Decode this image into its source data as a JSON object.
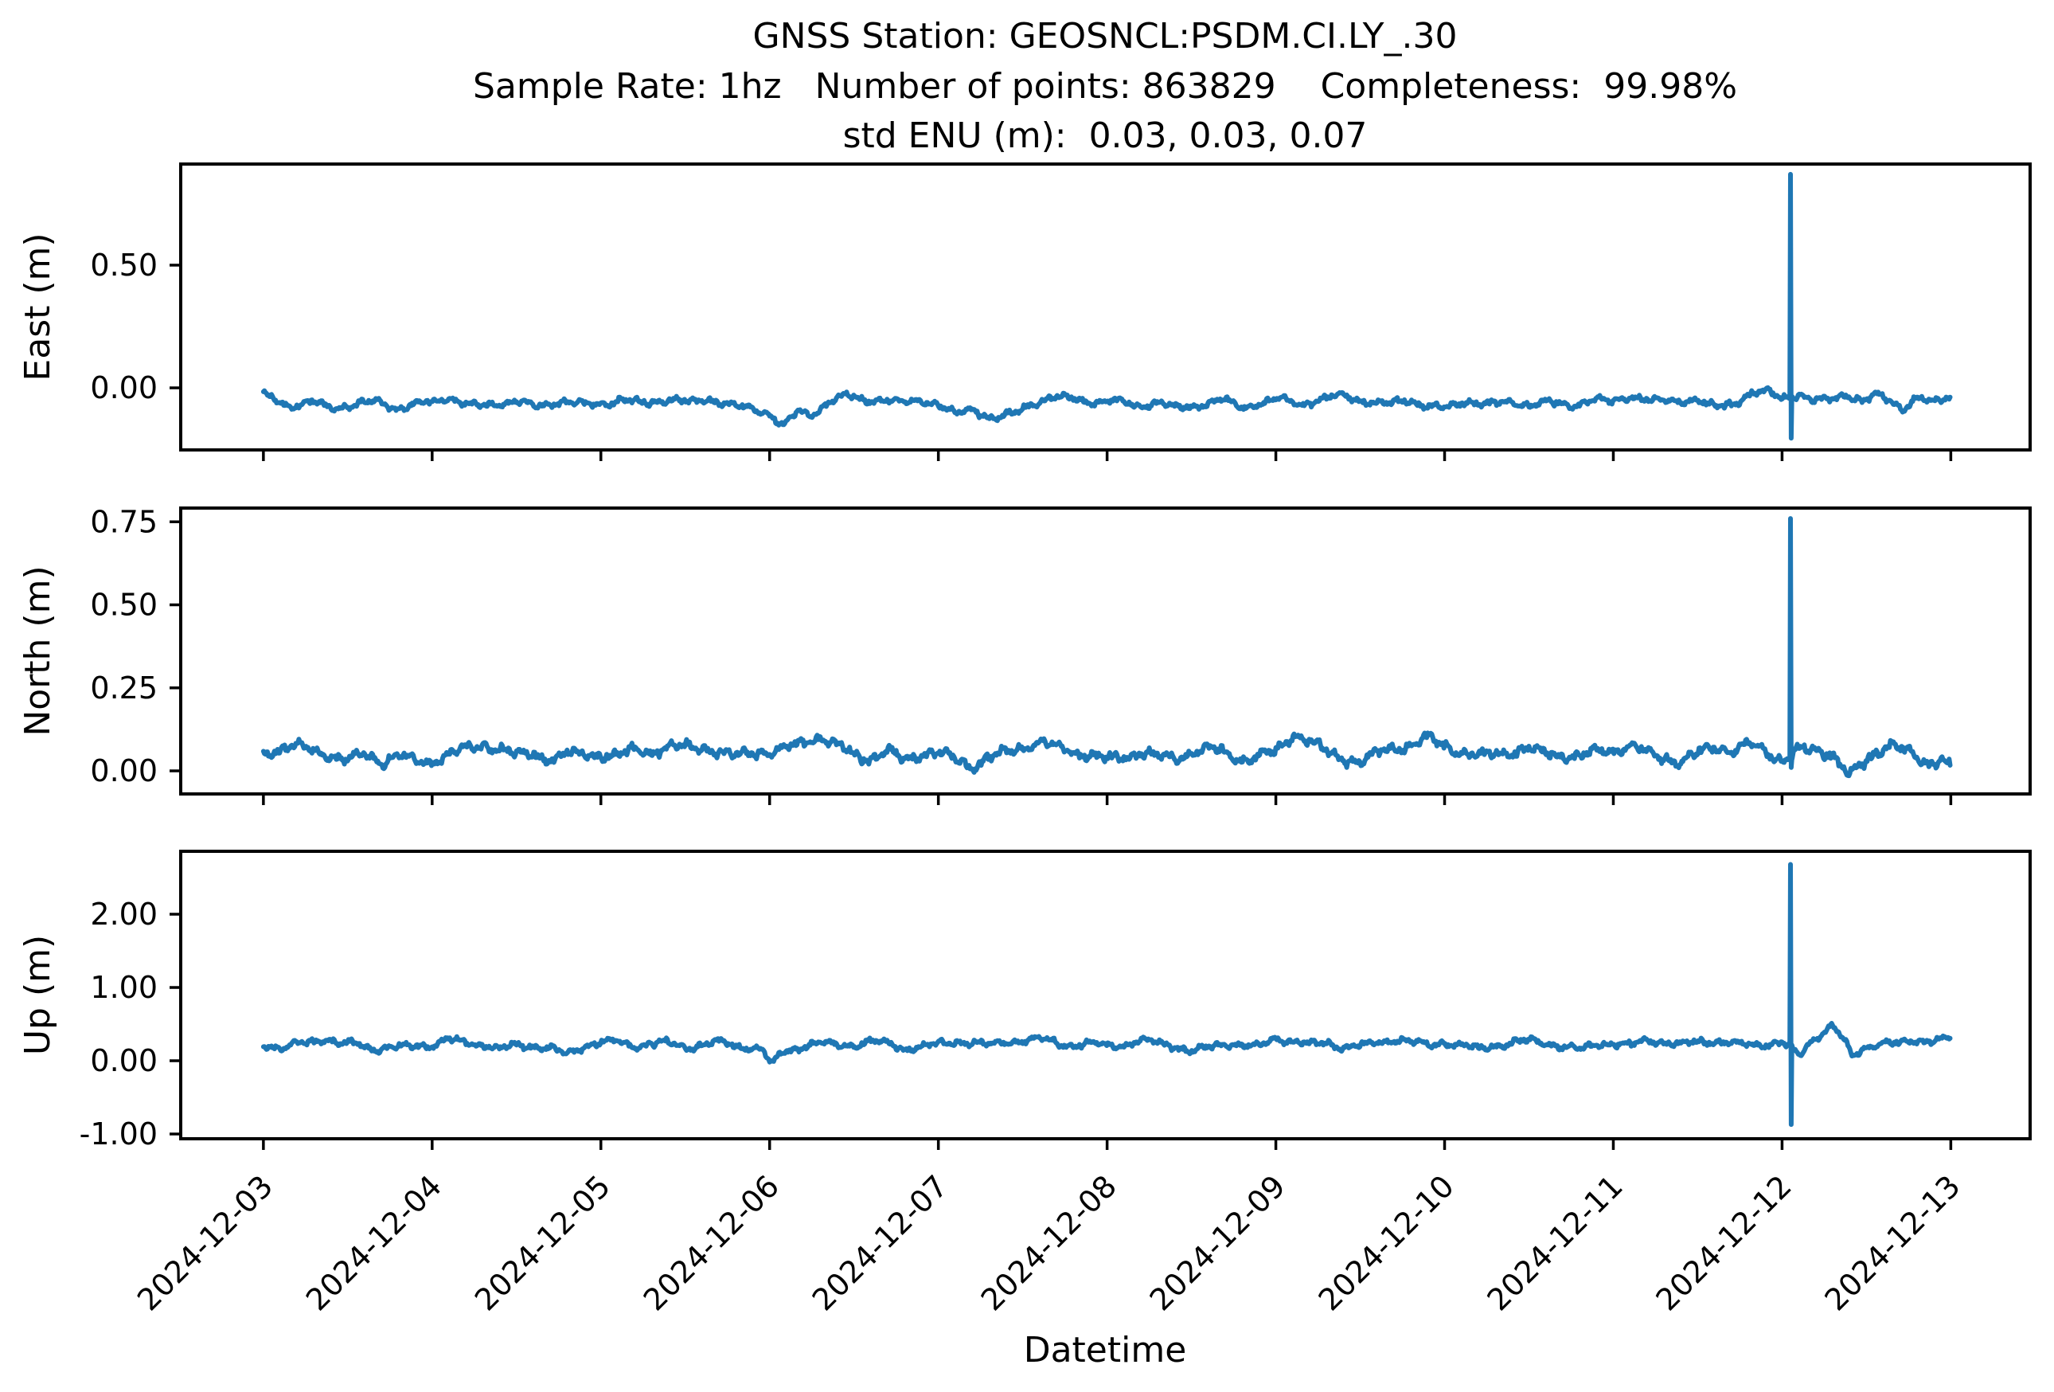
{
  "figure": {
    "background": "#ffffff",
    "axis_color": "#000000",
    "line_color": "#1f77b4"
  },
  "title": {
    "line1": "GNSS Station: GEOSNCL:PSDM.CI.LY_.30",
    "line2": "Sample Rate: 1hz   Number of points: 863829    Completeness:  99.98%",
    "line3": "std ENU (m):  0.03, 0.03, 0.07"
  },
  "xaxis": {
    "label": "Datetime",
    "xlim_days": [
      -0.49,
      10.47
    ],
    "tick_days": [
      0,
      1,
      2,
      3,
      4,
      5,
      6,
      7,
      8,
      9,
      10
    ],
    "tick_labels": [
      "2024-12-03",
      "2024-12-04",
      "2024-12-05",
      "2024-12-06",
      "2024-12-07",
      "2024-12-08",
      "2024-12-09",
      "2024-12-10",
      "2024-12-11",
      "2024-12-12",
      "2024-12-13"
    ]
  },
  "chart_data": [
    {
      "type": "line",
      "panel": "east",
      "ylabel": "East (m)",
      "ylim": [
        -0.253,
        0.912
      ],
      "ytick_values": [
        0.0,
        0.5
      ],
      "ytick_labels": [
        "0.00",
        "0.50"
      ],
      "grid": false,
      "legend": "none",
      "noise_amplitude": 0.014,
      "spike": {
        "t_days": 9.05,
        "peak": 0.87,
        "trough": -0.205
      },
      "anchors": [
        [
          0,
          -0.03
        ],
        [
          0.08,
          -0.05
        ],
        [
          0.17,
          -0.085
        ],
        [
          0.3,
          -0.06
        ],
        [
          0.42,
          -0.075
        ],
        [
          0.55,
          -0.065
        ],
        [
          0.68,
          -0.05
        ],
        [
          0.8,
          -0.09
        ],
        [
          0.9,
          -0.075
        ],
        [
          1.0,
          -0.06
        ],
        [
          1.1,
          -0.04
        ],
        [
          1.22,
          -0.07
        ],
        [
          1.35,
          -0.06
        ],
        [
          1.5,
          -0.055
        ],
        [
          1.62,
          -0.08
        ],
        [
          1.75,
          -0.06
        ],
        [
          1.9,
          -0.07
        ],
        [
          2.0,
          -0.06
        ],
        [
          2.12,
          -0.045
        ],
        [
          2.25,
          -0.06
        ],
        [
          2.4,
          -0.05
        ],
        [
          2.52,
          -0.065
        ],
        [
          2.65,
          -0.05
        ],
        [
          2.78,
          -0.07
        ],
        [
          2.9,
          -0.08
        ],
        [
          3.0,
          -0.1
        ],
        [
          3.08,
          -0.155
        ],
        [
          3.17,
          -0.1
        ],
        [
          3.25,
          -0.12
        ],
        [
          3.35,
          -0.06
        ],
        [
          3.45,
          -0.035
        ],
        [
          3.55,
          -0.05
        ],
        [
          3.68,
          -0.04
        ],
        [
          3.8,
          -0.06
        ],
        [
          3.9,
          -0.05
        ],
        [
          4.0,
          -0.07
        ],
        [
          4.1,
          -0.115
        ],
        [
          4.2,
          -0.09
        ],
        [
          4.32,
          -0.125
        ],
        [
          4.45,
          -0.1
        ],
        [
          4.55,
          -0.06
        ],
        [
          4.68,
          -0.035
        ],
        [
          4.8,
          -0.05
        ],
        [
          4.92,
          -0.065
        ],
        [
          5.05,
          -0.055
        ],
        [
          5.18,
          -0.07
        ],
        [
          5.3,
          -0.055
        ],
        [
          5.42,
          -0.08
        ],
        [
          5.55,
          -0.07
        ],
        [
          5.68,
          -0.055
        ],
        [
          5.8,
          -0.085
        ],
        [
          5.92,
          -0.06
        ],
        [
          6.02,
          -0.04
        ],
        [
          6.15,
          -0.06
        ],
        [
          6.28,
          -0.045
        ],
        [
          6.4,
          -0.035
        ],
        [
          6.52,
          -0.06
        ],
        [
          6.65,
          -0.07
        ],
        [
          6.78,
          -0.045
        ],
        [
          6.9,
          -0.07
        ],
        [
          7.0,
          -0.08
        ],
        [
          7.12,
          -0.055
        ],
        [
          7.25,
          -0.075
        ],
        [
          7.38,
          -0.06
        ],
        [
          7.5,
          -0.07
        ],
        [
          7.62,
          -0.055
        ],
        [
          7.75,
          -0.065
        ],
        [
          7.88,
          -0.05
        ],
        [
          8.0,
          -0.06
        ],
        [
          8.1,
          -0.04
        ],
        [
          8.22,
          -0.055
        ],
        [
          8.35,
          -0.05
        ],
        [
          8.48,
          -0.042
        ],
        [
          8.6,
          -0.075
        ],
        [
          8.72,
          -0.06
        ],
        [
          8.82,
          -0.03
        ],
        [
          8.92,
          -0.02
        ],
        [
          9.0,
          -0.045
        ],
        [
          9.1,
          -0.025
        ],
        [
          9.18,
          -0.05
        ],
        [
          9.28,
          -0.04
        ],
        [
          9.38,
          -0.02
        ],
        [
          9.48,
          -0.06
        ],
        [
          9.56,
          -0.03
        ],
        [
          9.64,
          -0.055
        ],
        [
          9.72,
          -0.09
        ],
        [
          9.8,
          -0.045
        ],
        [
          9.88,
          -0.06
        ],
        [
          9.95,
          -0.04
        ],
        [
          10,
          -0.03
        ]
      ]
    },
    {
      "type": "line",
      "panel": "north",
      "ylabel": "North (m)",
      "ylim": [
        -0.0695,
        0.7914
      ],
      "ytick_values": [
        0.0,
        0.25,
        0.5,
        0.75
      ],
      "ytick_labels": [
        "0.00",
        "0.25",
        "0.50",
        "0.75"
      ],
      "grid": false,
      "legend": "none",
      "noise_amplitude": 0.016,
      "spike": {
        "t_days": 9.05,
        "peak": 0.76,
        "trough": 0.01
      },
      "anchors": [
        [
          0,
          0.05
        ],
        [
          0.1,
          0.065
        ],
        [
          0.2,
          0.08
        ],
        [
          0.3,
          0.07
        ],
        [
          0.4,
          0.05
        ],
        [
          0.5,
          0.03
        ],
        [
          0.6,
          0.05
        ],
        [
          0.7,
          0.02
        ],
        [
          0.8,
          0.04
        ],
        [
          0.9,
          0.03
        ],
        [
          1.0,
          0.035
        ],
        [
          1.1,
          0.055
        ],
        [
          1.2,
          0.07
        ],
        [
          1.3,
          0.08
        ],
        [
          1.4,
          0.06
        ],
        [
          1.5,
          0.04
        ],
        [
          1.6,
          0.05
        ],
        [
          1.7,
          0.035
        ],
        [
          1.8,
          0.055
        ],
        [
          1.9,
          0.06
        ],
        [
          2.0,
          0.05
        ],
        [
          2.1,
          0.04
        ],
        [
          2.2,
          0.06
        ],
        [
          2.3,
          0.05
        ],
        [
          2.4,
          0.065
        ],
        [
          2.5,
          0.075
        ],
        [
          2.6,
          0.08
        ],
        [
          2.7,
          0.06
        ],
        [
          2.8,
          0.05
        ],
        [
          2.9,
          0.06
        ],
        [
          3.0,
          0.045
        ],
        [
          3.1,
          0.06
        ],
        [
          3.2,
          0.09
        ],
        [
          3.3,
          0.1
        ],
        [
          3.4,
          0.08
        ],
        [
          3.5,
          0.06
        ],
        [
          3.6,
          0.04
        ],
        [
          3.7,
          0.055
        ],
        [
          3.8,
          0.03
        ],
        [
          3.9,
          0.045
        ],
        [
          4.0,
          0.05
        ],
        [
          4.1,
          0.04
        ],
        [
          4.2,
          0.02
        ],
        [
          4.3,
          0.045
        ],
        [
          4.4,
          0.06
        ],
        [
          4.5,
          0.07
        ],
        [
          4.6,
          0.08
        ],
        [
          4.7,
          0.065
        ],
        [
          4.8,
          0.055
        ],
        [
          4.9,
          0.05
        ],
        [
          5.0,
          0.04
        ],
        [
          5.1,
          0.05
        ],
        [
          5.2,
          0.06
        ],
        [
          5.3,
          0.04
        ],
        [
          5.4,
          0.03
        ],
        [
          5.5,
          0.05
        ],
        [
          5.6,
          0.065
        ],
        [
          5.7,
          0.055
        ],
        [
          5.8,
          0.04
        ],
        [
          5.9,
          0.05
        ],
        [
          6.0,
          0.06
        ],
        [
          6.1,
          0.11
        ],
        [
          6.2,
          0.085
        ],
        [
          6.3,
          0.05
        ],
        [
          6.4,
          0.035
        ],
        [
          6.5,
          0.03
        ],
        [
          6.6,
          0.06
        ],
        [
          6.7,
          0.075
        ],
        [
          6.8,
          0.08
        ],
        [
          6.9,
          0.095
        ],
        [
          7.0,
          0.07
        ],
        [
          7.1,
          0.05
        ],
        [
          7.2,
          0.04
        ],
        [
          7.3,
          0.055
        ],
        [
          7.4,
          0.065
        ],
        [
          7.5,
          0.07
        ],
        [
          7.6,
          0.055
        ],
        [
          7.7,
          0.045
        ],
        [
          7.8,
          0.035
        ],
        [
          7.9,
          0.05
        ],
        [
          8.0,
          0.06
        ],
        [
          8.1,
          0.08
        ],
        [
          8.2,
          0.06
        ],
        [
          8.3,
          0.045
        ],
        [
          8.4,
          0.03
        ],
        [
          8.5,
          0.05
        ],
        [
          8.6,
          0.065
        ],
        [
          8.7,
          0.055
        ],
        [
          8.8,
          0.08
        ],
        [
          8.9,
          0.06
        ],
        [
          9.0,
          0.04
        ],
        [
          9.1,
          0.07
        ],
        [
          9.2,
          0.06
        ],
        [
          9.3,
          0.05
        ],
        [
          9.4,
          -0.02
        ],
        [
          9.5,
          0.02
        ],
        [
          9.6,
          0.07
        ],
        [
          9.65,
          0.09
        ],
        [
          9.75,
          0.06
        ],
        [
          9.85,
          0.02
        ],
        [
          9.95,
          0.045
        ],
        [
          10,
          0.02
        ]
      ]
    },
    {
      "type": "line",
      "panel": "up",
      "ylabel": "Up (m)",
      "ylim": [
        -1.065,
        2.859
      ],
      "ytick_values": [
        -1.0,
        0.0,
        1.0,
        2.0
      ],
      "ytick_labels": [
        "-1.00",
        "0.00",
        "1.00",
        "2.00"
      ],
      "grid": false,
      "legend": "none",
      "noise_amplitude": 0.045,
      "spike": {
        "t_days": 9.05,
        "peak": 2.68,
        "trough": -0.87
      },
      "anchors": [
        [
          0,
          0.25
        ],
        [
          0.1,
          0.15
        ],
        [
          0.22,
          0.26
        ],
        [
          0.35,
          0.28
        ],
        [
          0.45,
          0.2
        ],
        [
          0.55,
          0.24
        ],
        [
          0.68,
          0.15
        ],
        [
          0.8,
          0.2
        ],
        [
          0.9,
          0.24
        ],
        [
          1.0,
          0.2
        ],
        [
          1.1,
          0.28
        ],
        [
          1.2,
          0.24
        ],
        [
          1.3,
          0.2
        ],
        [
          1.4,
          0.14
        ],
        [
          1.5,
          0.24
        ],
        [
          1.6,
          0.22
        ],
        [
          1.7,
          0.18
        ],
        [
          1.8,
          0.1
        ],
        [
          1.9,
          0.2
        ],
        [
          2.0,
          0.23
        ],
        [
          2.1,
          0.25
        ],
        [
          2.2,
          0.2
        ],
        [
          2.3,
          0.24
        ],
        [
          2.4,
          0.26
        ],
        [
          2.5,
          0.2
        ],
        [
          2.6,
          0.22
        ],
        [
          2.7,
          0.25
        ],
        [
          2.8,
          0.18
        ],
        [
          2.9,
          0.16
        ],
        [
          2.96,
          0.15
        ],
        [
          3.01,
          -0.07
        ],
        [
          3.07,
          0.12
        ],
        [
          3.2,
          0.22
        ],
        [
          3.3,
          0.26
        ],
        [
          3.4,
          0.22
        ],
        [
          3.5,
          0.2
        ],
        [
          3.6,
          0.25
        ],
        [
          3.7,
          0.22
        ],
        [
          3.8,
          0.16
        ],
        [
          3.9,
          0.2
        ],
        [
          4.0,
          0.24
        ],
        [
          4.1,
          0.28
        ],
        [
          4.2,
          0.25
        ],
        [
          4.3,
          0.2
        ],
        [
          4.4,
          0.24
        ],
        [
          4.5,
          0.26
        ],
        [
          4.6,
          0.3
        ],
        [
          4.7,
          0.26
        ],
        [
          4.8,
          0.22
        ],
        [
          4.9,
          0.25
        ],
        [
          5.0,
          0.22
        ],
        [
          5.1,
          0.2
        ],
        [
          5.2,
          0.26
        ],
        [
          5.3,
          0.23
        ],
        [
          5.4,
          0.2
        ],
        [
          5.5,
          0.13
        ],
        [
          5.6,
          0.2
        ],
        [
          5.7,
          0.25
        ],
        [
          5.8,
          0.21
        ],
        [
          5.9,
          0.18
        ],
        [
          6.0,
          0.3
        ],
        [
          6.1,
          0.25
        ],
        [
          6.2,
          0.22
        ],
        [
          6.3,
          0.26
        ],
        [
          6.4,
          0.2
        ],
        [
          6.5,
          0.22
        ],
        [
          6.6,
          0.25
        ],
        [
          6.7,
          0.28
        ],
        [
          6.8,
          0.24
        ],
        [
          6.9,
          0.2
        ],
        [
          7.0,
          0.25
        ],
        [
          7.1,
          0.22
        ],
        [
          7.2,
          0.18
        ],
        [
          7.3,
          0.22
        ],
        [
          7.4,
          0.25
        ],
        [
          7.5,
          0.26
        ],
        [
          7.6,
          0.22
        ],
        [
          7.7,
          0.18
        ],
        [
          7.8,
          0.15
        ],
        [
          7.9,
          0.24
        ],
        [
          8.0,
          0.26
        ],
        [
          8.1,
          0.22
        ],
        [
          8.2,
          0.28
        ],
        [
          8.3,
          0.24
        ],
        [
          8.4,
          0.2
        ],
        [
          8.5,
          0.24
        ],
        [
          8.6,
          0.27
        ],
        [
          8.7,
          0.26
        ],
        [
          8.8,
          0.23
        ],
        [
          8.9,
          0.24
        ],
        [
          9.0,
          0.26
        ],
        [
          9.1,
          0.05
        ],
        [
          9.2,
          0.3
        ],
        [
          9.3,
          0.48
        ],
        [
          9.36,
          0.3
        ],
        [
          9.42,
          0.05
        ],
        [
          9.5,
          0.2
        ],
        [
          9.6,
          0.28
        ],
        [
          9.7,
          0.24
        ],
        [
          9.8,
          0.26
        ],
        [
          9.9,
          0.28
        ],
        [
          10,
          0.3
        ]
      ]
    }
  ]
}
